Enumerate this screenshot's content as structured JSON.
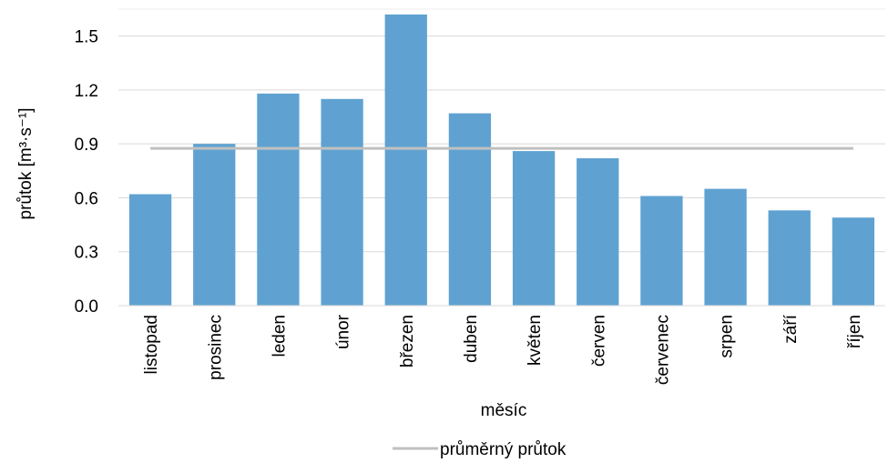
{
  "chart_data": {
    "type": "bar",
    "categories": [
      "listopad",
      "prosinec",
      "leden",
      "únor",
      "březen",
      "duben",
      "květen",
      "červen",
      "červenec",
      "srpen",
      "září",
      "říjen"
    ],
    "series": [
      {
        "values": [
          0.62,
          0.9,
          1.18,
          1.15,
          1.62,
          1.07,
          0.86,
          0.82,
          0.61,
          0.65,
          0.53,
          0.49
        ],
        "color": "#5fa2d1"
      },
      {
        "name": "průměrný průtok",
        "type": "line",
        "values": [
          0.875,
          0.875,
          0.875,
          0.875,
          0.875,
          0.875,
          0.875,
          0.875,
          0.875,
          0.875,
          0.875,
          0.875
        ],
        "color": "#c0c0c0"
      }
    ],
    "xlabel": "měsíc",
    "ylabel": "průtok [m³·s⁻¹]",
    "ylim": [
      0,
      1.65
    ],
    "yticks": [
      "0.0",
      "0.3",
      "0.6",
      "0.9",
      "1.2",
      "1.5"
    ],
    "grid": true,
    "legend": "bottom"
  }
}
